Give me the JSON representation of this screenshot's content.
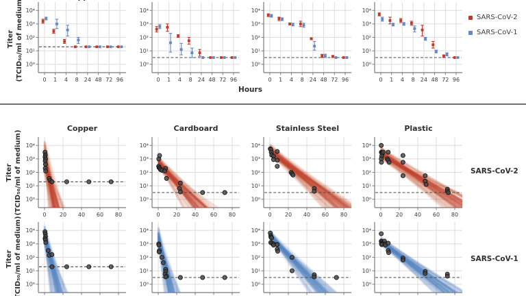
{
  "colors": {
    "sars2": "#bd3a2a",
    "sars1": "#6487c5",
    "band_red": "#c8452e",
    "band_blue": "#5b86c8",
    "point_fill": "#474747",
    "point_stroke": "#141414",
    "grid": "#dcdcdc",
    "axis": "#7a7a7a",
    "lod_dash": "#4a4a4a",
    "text": "#3a3a3a"
  },
  "legend": [
    {
      "label": "SARS-CoV-2",
      "color": "#bd3a2a",
      "swatch_key": "sars2"
    },
    {
      "label": "SARS-CoV-1",
      "color": "#6487c5",
      "swatch_key": "sars1"
    }
  ],
  "labels": {
    "y_axis_line1": "Titer",
    "y_axis_line2": "(TCID₅₀/ml of medium)",
    "x_axis_top": "Hours",
    "row2_label": "SARS-CoV-2",
    "row3_label": "SARS-CoV-1"
  },
  "y_tick_labels": [
    "10⁰",
    "10¹",
    "10²",
    "10³",
    "10⁴"
  ],
  "chart_data": {
    "description": "Viability of SARS-CoV-2 and SARS-CoV-1 on surfaces; top row: median titer with error bars vs hours; lower rows: measured titers (points) with Bayesian exponential-decay posterior bands; y axis log10 TCID50/ml of medium",
    "surfaces": [
      "Copper",
      "Cardboard",
      "Stainless Steel",
      "Plastic"
    ],
    "ylog_range": [
      0,
      4
    ],
    "x_hours_categorical": [
      0,
      1,
      4,
      8,
      24,
      48,
      72,
      96
    ],
    "x_linear_ticks": [
      0,
      20,
      40,
      60,
      80
    ],
    "top_row": {
      "type": "scatter",
      "note": "values are [hour, log10_titer, err_lo, err_hi]; no err = at detection limit",
      "panels": [
        {
          "surface": "Copper",
          "lod_log10": 1.3,
          "sars2": [
            [
              0,
              3.2,
              3.05,
              3.35
            ],
            [
              1,
              2.45,
              2.3,
              2.6
            ],
            [
              4,
              1.7,
              1.55,
              1.85
            ],
            [
              8,
              1.3
            ],
            [
              24,
              1.3
            ],
            [
              48,
              1.3
            ],
            [
              72,
              1.3
            ],
            [
              96,
              1.3
            ]
          ],
          "sars1": [
            [
              0,
              3.4,
              3.3,
              3.5
            ],
            [
              1,
              3.0,
              2.65,
              3.35
            ],
            [
              4,
              2.55,
              2.1,
              2.9
            ],
            [
              8,
              1.8,
              1.55,
              2.0
            ],
            [
              24,
              1.3
            ],
            [
              48,
              1.3
            ],
            [
              72,
              1.3
            ],
            [
              96,
              1.3
            ]
          ]
        },
        {
          "surface": "Cardboard",
          "lod_log10": 0.5,
          "sars2": [
            [
              0,
              2.6,
              2.4,
              2.8
            ],
            [
              1,
              2.75,
              2.45,
              3.0
            ],
            [
              4,
              2.1,
              2.0,
              2.2
            ],
            [
              8,
              1.75,
              1.5,
              2.0
            ],
            [
              24,
              0.85,
              0.6,
              1.1
            ],
            [
              48,
              0.5
            ],
            [
              72,
              0.5
            ],
            [
              96,
              0.5
            ]
          ],
          "sars1": [
            [
              0,
              2.8,
              2.65,
              2.95
            ],
            [
              1,
              1.6,
              0.9,
              2.3
            ],
            [
              4,
              1.1,
              0.7,
              1.55
            ],
            [
              8,
              0.85,
              0.5,
              1.2
            ],
            [
              24,
              0.5
            ],
            [
              48,
              0.5
            ],
            [
              72,
              0.5
            ],
            [
              96,
              0.5
            ]
          ]
        },
        {
          "surface": "Stainless Steel",
          "lod_log10": 0.5,
          "sars2": [
            [
              0,
              3.65,
              3.55,
              3.75
            ],
            [
              1,
              3.4,
              3.25,
              3.5
            ],
            [
              4,
              3.0,
              2.93,
              3.07
            ],
            [
              8,
              3.0,
              2.8,
              3.2
            ],
            [
              24,
              1.9,
              1.83,
              1.97
            ],
            [
              48,
              0.62,
              0.5,
              0.74
            ],
            [
              72,
              0.58,
              0.5,
              0.66
            ],
            [
              96,
              0.5
            ]
          ],
          "sars1": [
            [
              0,
              3.6,
              3.5,
              3.7
            ],
            [
              1,
              3.35,
              3.25,
              3.45
            ],
            [
              4,
              2.95,
              2.85,
              3.05
            ],
            [
              8,
              2.9,
              2.75,
              3.05
            ],
            [
              24,
              1.35,
              1.05,
              1.7
            ],
            [
              48,
              0.62,
              0.5,
              0.75
            ],
            [
              72,
              0.5
            ],
            [
              96,
              0.5
            ]
          ]
        },
        {
          "surface": "Plastic",
          "lod_log10": 0.5,
          "sars2": [
            [
              0,
              3.7,
              3.6,
              3.82
            ],
            [
              1,
              3.25,
              3.0,
              3.5
            ],
            [
              4,
              3.25,
              3.1,
              3.4
            ],
            [
              8,
              3.05,
              2.9,
              3.2
            ],
            [
              24,
              2.55,
              2.1,
              2.9
            ],
            [
              48,
              1.45,
              1.2,
              1.7
            ],
            [
              72,
              0.6,
              0.5,
              0.7
            ],
            [
              96,
              0.5
            ]
          ],
          "sars1": [
            [
              0,
              3.35,
              3.2,
              3.5
            ],
            [
              1,
              2.95,
              2.85,
              3.05
            ],
            [
              4,
              3.0,
              2.9,
              3.1
            ],
            [
              8,
              2.65,
              2.4,
              2.85
            ],
            [
              24,
              1.9,
              1.78,
              2.0
            ],
            [
              48,
              0.95,
              0.85,
              1.05
            ],
            [
              72,
              0.75,
              0.62,
              0.85
            ],
            [
              96,
              0.5
            ]
          ]
        }
      ]
    },
    "sars2_row": {
      "type": "scatter",
      "virus": "SARS-CoV-2",
      "note": "points are [hour, log10_titer]; band = posterior decay draws from intercept range to x-intercept range",
      "panels": [
        {
          "surface": "Copper",
          "lod_log10": 1.3,
          "band": {
            "intercept": [
              1.9,
              4.4
            ],
            "x_zero": [
              3,
              18
            ]
          },
          "points": [
            [
              0.5,
              3.5
            ],
            [
              0.9,
              3.3
            ],
            [
              0.6,
              3.15
            ],
            [
              1.1,
              3.0
            ],
            [
              0.7,
              2.85
            ],
            [
              1.0,
              2.6
            ],
            [
              0.8,
              2.3
            ],
            [
              1.2,
              2.1
            ],
            [
              5,
              1.55
            ],
            [
              6,
              1.4
            ],
            [
              8,
              1.3
            ],
            [
              24,
              1.3
            ],
            [
              48,
              1.3
            ],
            [
              72,
              1.3
            ]
          ]
        },
        {
          "surface": "Cardboard",
          "lod_log10": 0.5,
          "band": {
            "intercept": [
              2.3,
              3.2
            ],
            "x_zero": [
              22,
              52
            ]
          },
          "points": [
            [
              0.6,
              3.0
            ],
            [
              1.5,
              3.25
            ],
            [
              0.5,
              2.45
            ],
            [
              0.9,
              2.35
            ],
            [
              1.8,
              2.3
            ],
            [
              2.5,
              2.2
            ],
            [
              4,
              2.15
            ],
            [
              8,
              2.3
            ],
            [
              7,
              2.1
            ],
            [
              9,
              1.55
            ],
            [
              24,
              1.2
            ],
            [
              23,
              0.8
            ],
            [
              24,
              0.55
            ],
            [
              48,
              0.5
            ],
            [
              72,
              0.5
            ]
          ]
        },
        {
          "surface": "Stainless Steel",
          "lod_log10": 0.5,
          "band": {
            "intercept": [
              3.2,
              4.1
            ],
            "x_zero": [
              48,
              88
            ]
          },
          "points": [
            [
              0.5,
              3.75
            ],
            [
              1,
              3.7
            ],
            [
              1.5,
              3.5
            ],
            [
              8,
              3.55
            ],
            [
              2,
              3.3
            ],
            [
              4,
              3.2
            ],
            [
              4,
              2.95
            ],
            [
              8,
              2.9
            ],
            [
              8,
              2.45
            ],
            [
              23,
              2.0
            ],
            [
              24,
              1.9
            ],
            [
              25,
              1.8
            ],
            [
              48,
              0.8
            ],
            [
              48,
              0.6
            ]
          ]
        },
        {
          "surface": "Plastic",
          "lod_log10": 0.5,
          "band": {
            "intercept": [
              3.0,
              3.9
            ],
            "x_zero": [
              55,
              100
            ]
          },
          "points": [
            [
              0.5,
              4.0
            ],
            [
              0.6,
              3.5
            ],
            [
              1,
              3.45
            ],
            [
              1.5,
              3.4
            ],
            [
              2.5,
              3.5
            ],
            [
              1,
              3.2
            ],
            [
              0.5,
              3.0
            ],
            [
              0.7,
              2.75
            ],
            [
              8,
              3.5
            ],
            [
              7,
              3.0
            ],
            [
              8,
              2.9
            ],
            [
              9,
              2.75
            ],
            [
              24,
              3.25
            ],
            [
              24,
              2.75
            ],
            [
              24,
              1.75
            ],
            [
              48,
              1.75
            ],
            [
              48,
              1.35
            ],
            [
              49,
              1.1
            ],
            [
              72,
              0.75
            ],
            [
              72,
              0.62
            ],
            [
              73,
              0.5
            ]
          ]
        }
      ]
    },
    "sars1_row": {
      "type": "scatter",
      "virus": "SARS-CoV-1",
      "panels": [
        {
          "surface": "Copper",
          "lod_log10": 1.3,
          "band": {
            "intercept": [
              3.0,
              4.4
            ],
            "x_zero": [
              5,
              22
            ]
          },
          "points": [
            [
              0.5,
              3.9
            ],
            [
              0.8,
              3.75
            ],
            [
              1.1,
              3.55
            ],
            [
              0.6,
              3.4
            ],
            [
              1.0,
              3.3
            ],
            [
              1.3,
              3.1
            ],
            [
              4,
              2.5
            ],
            [
              5,
              2.15
            ],
            [
              8,
              2.2
            ],
            [
              8,
              1.3
            ],
            [
              24,
              1.3
            ],
            [
              48,
              1.3
            ],
            [
              72,
              1.3
            ]
          ]
        },
        {
          "surface": "Cardboard",
          "lod_log10": 0.5,
          "band": {
            "intercept": [
              2.8,
              4.3
            ],
            "x_zero": [
              5,
              20
            ]
          },
          "points": [
            [
              0.5,
              3.0
            ],
            [
              0.8,
              2.9
            ],
            [
              1.2,
              2.5
            ],
            [
              1.0,
              2.4
            ],
            [
              4,
              2.0
            ],
            [
              5.5,
              1.6
            ],
            [
              8,
              1.1
            ],
            [
              8,
              0.95
            ],
            [
              7.5,
              0.75
            ],
            [
              9,
              0.6
            ],
            [
              8,
              0.55
            ],
            [
              24,
              0.5
            ],
            [
              48,
              0.5
            ],
            [
              72,
              0.5
            ]
          ]
        },
        {
          "surface": "Stainless Steel",
          "lod_log10": 0.5,
          "band": {
            "intercept": [
              3.3,
              4.0
            ],
            "x_zero": [
              36,
              62
            ]
          },
          "points": [
            [
              0.5,
              3.8
            ],
            [
              1,
              3.6
            ],
            [
              1.2,
              3.5
            ],
            [
              2,
              3.45
            ],
            [
              1,
              3.1
            ],
            [
              2.2,
              3.05
            ],
            [
              4,
              3.0
            ],
            [
              4,
              2.9
            ],
            [
              8,
              2.95
            ],
            [
              8,
              2.6
            ],
            [
              8.5,
              2.45
            ],
            [
              24,
              2.0
            ],
            [
              24,
              1.0
            ],
            [
              48,
              0.7
            ],
            [
              48,
              0.55
            ],
            [
              72,
              0.5
            ]
          ]
        },
        {
          "surface": "Plastic",
          "lod_log10": 0.5,
          "band": {
            "intercept": [
              2.9,
              3.5
            ],
            "x_zero": [
              48,
              78
            ]
          },
          "points": [
            [
              0.5,
              3.75
            ],
            [
              0.5,
              3.2
            ],
            [
              0.9,
              3.15
            ],
            [
              1.2,
              3.05
            ],
            [
              0.7,
              3.0
            ],
            [
              1.8,
              3.0
            ],
            [
              1.0,
              2.95
            ],
            [
              4,
              3.2
            ],
            [
              4.5,
              3.0
            ],
            [
              5,
              2.9
            ],
            [
              8,
              3.05
            ],
            [
              8,
              2.5
            ],
            [
              8.5,
              2.35
            ],
            [
              24,
              1.95
            ],
            [
              24,
              1.8
            ],
            [
              48,
              0.95
            ],
            [
              48,
              0.8
            ],
            [
              72,
              0.75
            ],
            [
              72,
              0.6
            ]
          ]
        }
      ]
    }
  }
}
